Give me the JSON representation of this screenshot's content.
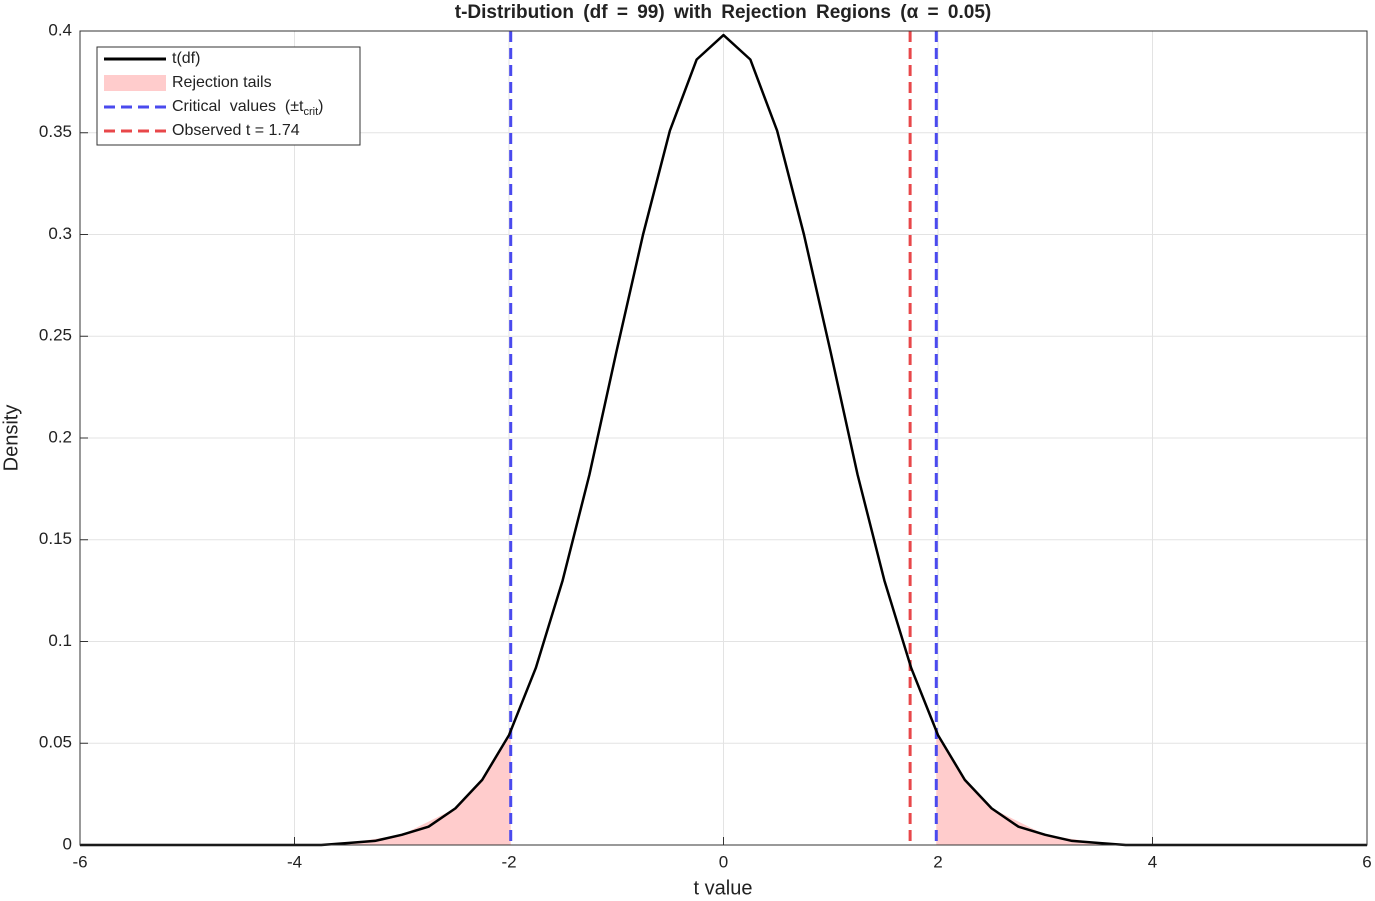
{
  "chart_data": {
    "type": "line",
    "title": "t-Distribution (df = 99) with Rejection Regions (α = 0.05)",
    "xlabel": "t value",
    "ylabel": "Density",
    "xlim": [
      -6,
      6
    ],
    "xticks": [
      -6,
      -4,
      -2,
      0,
      2,
      4,
      6
    ],
    "ylim": [
      0,
      0.4
    ],
    "yticks": [
      0,
      0.05,
      0.1,
      0.15,
      0.2,
      0.25,
      0.3,
      0.35,
      0.4
    ],
    "grid": true,
    "legend": "upper left",
    "series": [
      {
        "name": "t(df)",
        "kind": "line",
        "color": "#000000",
        "x": [
          -6,
          -5.75,
          -5.5,
          -5.25,
          -5,
          -4.75,
          -4.5,
          -4.25,
          -4,
          -3.75,
          -3.5,
          -3.25,
          -3,
          -2.75,
          -2.5,
          -2.25,
          -2,
          -1.75,
          -1.5,
          -1.25,
          -1,
          -0.75,
          -0.5,
          -0.25,
          0,
          0.25,
          0.5,
          0.75,
          1,
          1.25,
          1.5,
          1.75,
          2,
          2.25,
          2.5,
          2.75,
          3,
          3.25,
          3.5,
          3.75,
          4,
          4.25,
          4.5,
          4.75,
          5,
          5.25,
          5.5,
          5.75,
          6
        ],
        "values": [
          0,
          0,
          0,
          0,
          0,
          0,
          0,
          0,
          0,
          0,
          0.001,
          0.002,
          0.005,
          0.009,
          0.018,
          0.032,
          0.054,
          0.087,
          0.13,
          0.182,
          0.242,
          0.3,
          0.351,
          0.386,
          0.398,
          0.386,
          0.351,
          0.3,
          0.242,
          0.182,
          0.13,
          0.087,
          0.054,
          0.032,
          0.018,
          0.009,
          0.005,
          0.002,
          0.001,
          0,
          0,
          0,
          0,
          0,
          0,
          0,
          0,
          0,
          0
        ]
      },
      {
        "name": "Rejection tails",
        "kind": "area",
        "color": "#ffcccc",
        "x": [
          -6,
          -5.5,
          -5,
          -4.5,
          -4,
          -3.5,
          -3,
          -2.5,
          -2.25,
          -2,
          -1.984,
          null,
          1.984,
          2,
          2.25,
          2.5,
          3,
          3.5,
          4,
          4.5,
          5,
          5.5,
          6
        ],
        "values": [
          0,
          0,
          0,
          0,
          0,
          0.001,
          0.005,
          0.018,
          0.032,
          0.054,
          0.056,
          null,
          0.056,
          0.054,
          0.032,
          0.018,
          0.005,
          0.001,
          0,
          0,
          0,
          0,
          0
        ]
      },
      {
        "name_parts": [
          "Critical  values  (±t",
          "crit",
          ")"
        ],
        "kind": "vline",
        "color": "#4a4aee",
        "x": [
          -1.984,
          1.984
        ]
      },
      {
        "name": "Observed t = 1.74",
        "kind": "vline",
        "color": "#e8474a",
        "x": [
          1.74
        ]
      }
    ]
  }
}
